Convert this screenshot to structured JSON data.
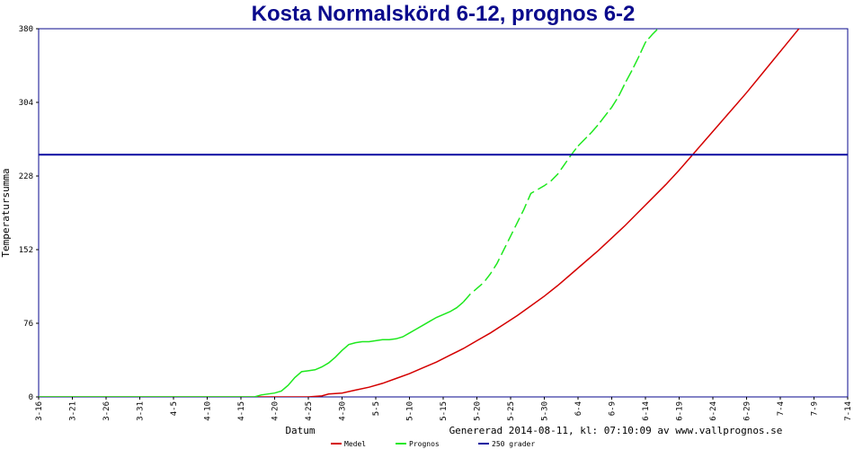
{
  "chart_data": {
    "type": "line",
    "title": "Kosta Normalskörd 6-12, prognos 6-2",
    "xlabel": "Datum",
    "ylabel": "Temperatursumma",
    "footer": "Genererad 2014-08-11, kl: 07:10:09 av www.vallprognos.se",
    "ylim": [
      0,
      380
    ],
    "yticks": [
      "0",
      "76",
      "152",
      "228",
      "304",
      "380"
    ],
    "xticks": [
      "3-16",
      "3-21",
      "3-26",
      "3-31",
      "4-5",
      "4-10",
      "4-15",
      "4-20",
      "4-25",
      "4-30",
      "5-5",
      "5-10",
      "5-15",
      "5-20",
      "5-25",
      "5-30",
      "6-4",
      "6-9",
      "6-14",
      "6-19",
      "6-24",
      "6-29",
      "7-4",
      "7-9",
      "7-14"
    ],
    "x_start": "3-16",
    "xlim_days": [
      0,
      120
    ],
    "grid": false,
    "legend_position": "bottom",
    "series": [
      {
        "name": "Medel",
        "color": "#d40000",
        "style": "solid",
        "points": [
          [
            0,
            0
          ],
          [
            40,
            0
          ],
          [
            42,
            1
          ],
          [
            43,
            3
          ],
          [
            45,
            4
          ],
          [
            47,
            7
          ],
          [
            49,
            10
          ],
          [
            51,
            14
          ],
          [
            53,
            19
          ],
          [
            55,
            24
          ],
          [
            57,
            30
          ],
          [
            59,
            36
          ],
          [
            61,
            43
          ],
          [
            63,
            50
          ],
          [
            65,
            58
          ],
          [
            67,
            66
          ],
          [
            69,
            75
          ],
          [
            71,
            84
          ],
          [
            73,
            94
          ],
          [
            75,
            104
          ],
          [
            77,
            115
          ],
          [
            79,
            127
          ],
          [
            81,
            139
          ],
          [
            83,
            151
          ],
          [
            85,
            164
          ],
          [
            87,
            177
          ],
          [
            89,
            191
          ],
          [
            91,
            205
          ],
          [
            93,
            219
          ],
          [
            95,
            234
          ],
          [
            97,
            250
          ],
          [
            99,
            266
          ],
          [
            101,
            282
          ],
          [
            103,
            298
          ],
          [
            105,
            314
          ],
          [
            107,
            331
          ],
          [
            109,
            348
          ],
          [
            111,
            365
          ],
          [
            113,
            382
          ]
        ]
      },
      {
        "name": "Prognos",
        "color": "#1ee81e",
        "style": "mixed",
        "dash_from_x": 63,
        "dash_to_x": 80,
        "points": [
          [
            0,
            0
          ],
          [
            32,
            0
          ],
          [
            33,
            2
          ],
          [
            35,
            4
          ],
          [
            36,
            6
          ],
          [
            37,
            12
          ],
          [
            38,
            20
          ],
          [
            39,
            26
          ],
          [
            40,
            27
          ],
          [
            41,
            28
          ],
          [
            42,
            31
          ],
          [
            43,
            35
          ],
          [
            44,
            41
          ],
          [
            45,
            48
          ],
          [
            46,
            54
          ],
          [
            47,
            56
          ],
          [
            48,
            57
          ],
          [
            49,
            57
          ],
          [
            50,
            58
          ],
          [
            51,
            59
          ],
          [
            52,
            59
          ],
          [
            53,
            60
          ],
          [
            54,
            62
          ],
          [
            55,
            66
          ],
          [
            56,
            70
          ],
          [
            57,
            74
          ],
          [
            58,
            78
          ],
          [
            59,
            82
          ],
          [
            60,
            85
          ],
          [
            61,
            88
          ],
          [
            62,
            92
          ],
          [
            63,
            98
          ],
          [
            64,
            106
          ],
          [
            65,
            112
          ],
          [
            66,
            118
          ],
          [
            67,
            127
          ],
          [
            68,
            138
          ],
          [
            69,
            152
          ],
          [
            70,
            166
          ],
          [
            71,
            180
          ],
          [
            72,
            194
          ],
          [
            73,
            210
          ],
          [
            74,
            214
          ],
          [
            75,
            218
          ],
          [
            76,
            223
          ],
          [
            77,
            230
          ],
          [
            78,
            240
          ],
          [
            79,
            250
          ],
          [
            80,
            259
          ],
          [
            81,
            266
          ],
          [
            82,
            273
          ],
          [
            83,
            281
          ],
          [
            84,
            290
          ],
          [
            85,
            299
          ],
          [
            86,
            310
          ],
          [
            87,
            324
          ],
          [
            88,
            337
          ],
          [
            89,
            351
          ],
          [
            90,
            366
          ],
          [
            91,
            374
          ],
          [
            92,
            381
          ],
          [
            93,
            388
          ],
          [
            94,
            396
          ],
          [
            95,
            404
          ],
          [
            96,
            412
          ]
        ]
      },
      {
        "name": "250 grader",
        "color": "#0a0aa0",
        "style": "solid",
        "points": [
          [
            0,
            250
          ],
          [
            120,
            250
          ]
        ]
      }
    ]
  }
}
